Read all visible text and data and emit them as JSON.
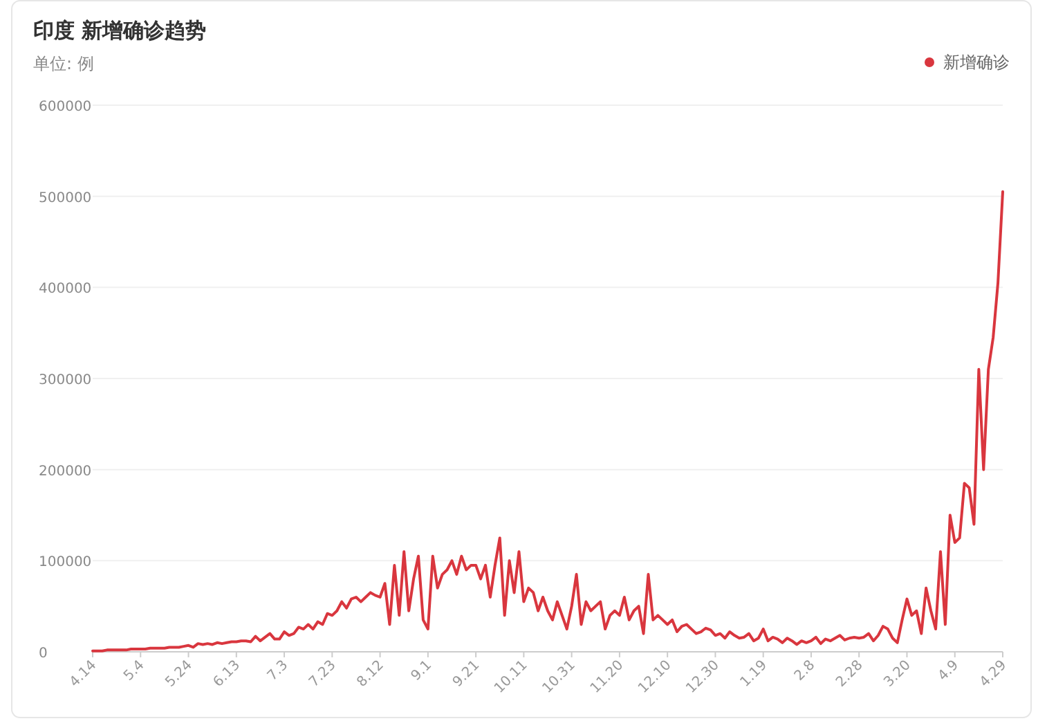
{
  "chart_data": {
    "type": "line",
    "title": "印度 新增确诊趋势",
    "subtitle": "单位: 例",
    "legend": "top right",
    "grid": "y",
    "marker": "none",
    "categories": [
      "4.14",
      null,
      null,
      null,
      null,
      null,
      null,
      null,
      null,
      null,
      "5.4",
      null,
      null,
      null,
      null,
      null,
      null,
      null,
      null,
      null,
      "5.24",
      null,
      null,
      null,
      null,
      null,
      null,
      null,
      null,
      null,
      "6.13",
      null,
      null,
      null,
      null,
      null,
      null,
      null,
      null,
      null,
      "7.3",
      null,
      null,
      null,
      null,
      null,
      null,
      null,
      null,
      null,
      "7.23",
      null,
      null,
      null,
      null,
      null,
      null,
      null,
      null,
      null,
      "8.12",
      null,
      null,
      null,
      null,
      null,
      null,
      null,
      null,
      null,
      "9.1",
      null,
      null,
      null,
      null,
      null,
      null,
      null,
      null,
      null,
      "9.21",
      null,
      null,
      null,
      null,
      null,
      null,
      null,
      null,
      null,
      "10.11",
      null,
      null,
      null,
      null,
      null,
      null,
      null,
      null,
      null,
      "10.31",
      null,
      null,
      null,
      null,
      null,
      null,
      null,
      null,
      null,
      "11.20",
      null,
      null,
      null,
      null,
      null,
      null,
      null,
      null,
      null,
      "12.10",
      null,
      null,
      null,
      null,
      null,
      null,
      null,
      null,
      null,
      "12.30",
      null,
      null,
      null,
      null,
      null,
      null,
      null,
      null,
      null,
      "1.19",
      null,
      null,
      null,
      null,
      null,
      null,
      null,
      null,
      null,
      "2.8",
      null,
      null,
      null,
      null,
      null,
      null,
      null,
      null,
      null,
      "2.28",
      null,
      null,
      null,
      null,
      null,
      null,
      null,
      null,
      null,
      "3.20",
      null,
      null,
      null,
      null,
      null,
      null,
      null,
      null,
      null,
      "4.9",
      null,
      null,
      null,
      null,
      null,
      null,
      null,
      null,
      null,
      "4.29"
    ],
    "series": [
      {
        "name": "新增确诊",
        "color": "#d9363e",
        "values": [
          1000,
          1000,
          1000,
          2000,
          2000,
          2000,
          2000,
          2000,
          3000,
          3000,
          3000,
          3000,
          4000,
          4000,
          4000,
          4000,
          5000,
          5000,
          5000,
          6000,
          7000,
          5000,
          9000,
          8000,
          9000,
          8000,
          10000,
          9000,
          10000,
          11000,
          11000,
          12000,
          12000,
          11000,
          17000,
          12000,
          16000,
          20000,
          14000,
          14000,
          22000,
          18000,
          20000,
          27000,
          25000,
          30000,
          25000,
          33000,
          30000,
          42000,
          40000,
          45000,
          55000,
          48000,
          58000,
          60000,
          55000,
          60000,
          65000,
          62000,
          60000,
          75000,
          30000,
          95000,
          40000,
          110000,
          45000,
          80000,
          105000,
          35000,
          25000,
          105000,
          70000,
          85000,
          90000,
          100000,
          85000,
          105000,
          90000,
          95000,
          95000,
          80000,
          95000,
          60000,
          95000,
          125000,
          40000,
          100000,
          65000,
          110000,
          55000,
          70000,
          65000,
          45000,
          60000,
          45000,
          35000,
          55000,
          40000,
          25000,
          50000,
          85000,
          30000,
          55000,
          45000,
          50000,
          55000,
          25000,
          40000,
          45000,
          40000,
          60000,
          35000,
          45000,
          50000,
          20000,
          85000,
          35000,
          40000,
          35000,
          30000,
          35000,
          22000,
          28000,
          30000,
          25000,
          20000,
          22000,
          26000,
          24000,
          18000,
          20000,
          15000,
          22000,
          18000,
          15000,
          16000,
          20000,
          12000,
          15000,
          25000,
          12000,
          16000,
          14000,
          10000,
          15000,
          12000,
          8000,
          12000,
          10000,
          12000,
          16000,
          9000,
          14000,
          12000,
          15000,
          18000,
          13000,
          15000,
          16000,
          15000,
          16000,
          20000,
          12000,
          18000,
          28000,
          25000,
          15000,
          10000,
          35000,
          58000,
          40000,
          45000,
          20000,
          70000,
          45000,
          25000,
          110000,
          30000,
          150000,
          120000,
          125000,
          185000,
          180000,
          140000,
          310000,
          200000,
          310000,
          345000,
          405000,
          505000
        ]
      }
    ],
    "ylim": [
      0,
      600000
    ],
    "yticks": [
      0,
      100000,
      200000,
      300000,
      400000,
      500000,
      600000
    ]
  }
}
